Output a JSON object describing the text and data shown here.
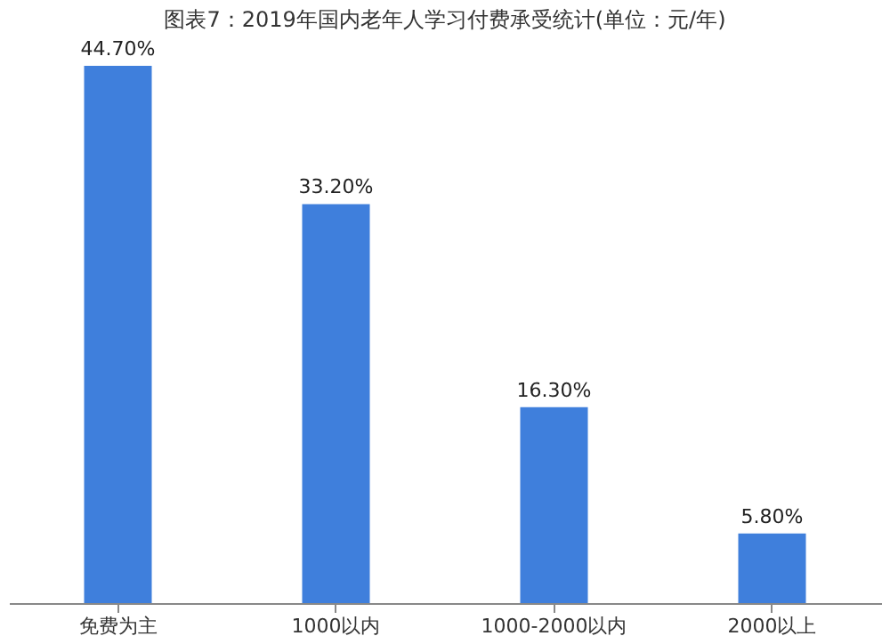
{
  "chart_data": {
    "type": "bar",
    "title": "图表7：2019年国内老年人学习付费承受统计(单位：元/年)",
    "categories": [
      "免费为主",
      "1000以内",
      "1000-2000以内",
      "2000以上"
    ],
    "values": [
      44.7,
      33.2,
      16.3,
      5.8
    ],
    "value_labels": [
      "44.70%",
      "33.20%",
      "16.30%",
      "5.80%"
    ],
    "color": "#3f7fdc",
    "grid": false
  }
}
